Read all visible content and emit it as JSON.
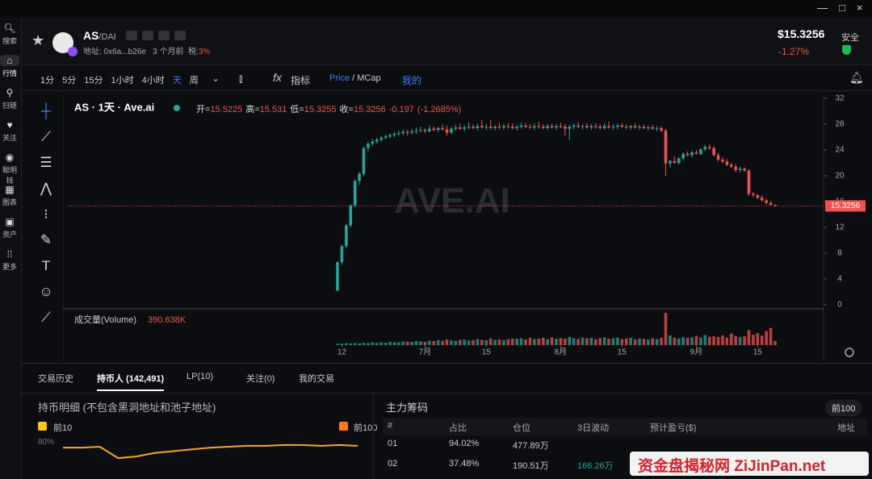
{
  "sidebar": [
    "搜索",
    "行情",
    "扫链",
    "关注",
    "聪明钱",
    "图表",
    "资产",
    "更多"
  ],
  "header": {
    "pair": "AS",
    "quote": "/DAI",
    "address": "地址: 0x6a...b26e",
    "age": "3 个月前",
    "tax_label": "税:",
    "tax": "3%",
    "price": "$15.3256",
    "change": "-1.27%",
    "safety": "安全"
  },
  "toolbar": {
    "intervals": [
      "1分",
      "5分",
      "15分",
      "1小时",
      "4小时",
      "天",
      "周"
    ],
    "indicators": "指标",
    "price_mode": "Price",
    "mcap_mode": "/ MCap",
    "mine": "我的"
  },
  "chart_data": {
    "type": "candlestick",
    "title": "AS · 1天 · Ave.ai",
    "watermark": "AVE.AI",
    "legend": [
      {
        "label": "开=",
        "value": "15.5225"
      },
      {
        "label": "高=",
        "value": "15.531"
      },
      {
        "label": "低=",
        "value": "15.3255"
      },
      {
        "label": "收=",
        "value": "15.3256"
      }
    ],
    "change": "-0.197",
    "change_pct": "(-1.2685%)",
    "up_color": "#26a69a",
    "down_color": "#ef5350",
    "ylim": [
      0,
      32
    ],
    "yticks": [
      0,
      4,
      8,
      12,
      16,
      20,
      24,
      28,
      32
    ],
    "xticks": [
      {
        "value": 1,
        "label": "12"
      },
      {
        "value": 20,
        "label": "7月"
      },
      {
        "value": 34,
        "label": "15"
      },
      {
        "value": 51,
        "label": "8月"
      },
      {
        "value": 65,
        "label": "15"
      },
      {
        "value": 82,
        "label": "9月"
      },
      {
        "value": 96,
        "label": "15"
      }
    ],
    "last_price": 15.3256,
    "candles": [
      [
        2.2,
        6.7,
        2.1,
        6.6
      ],
      [
        6.6,
        9.3,
        6.2,
        9.1
      ],
      [
        9.1,
        12.6,
        8.8,
        12.3
      ],
      [
        12.3,
        15.6,
        12.0,
        15.4
      ],
      [
        15.4,
        19.4,
        15.1,
        19.2
      ],
      [
        19.2,
        20.6,
        18.6,
        20.3
      ],
      [
        20.3,
        24.5,
        19.9,
        24.3
      ],
      [
        24.3,
        25.3,
        23.8,
        25.0
      ],
      [
        25.0,
        25.7,
        24.6,
        25.3
      ],
      [
        25.3,
        25.9,
        25.0,
        25.6
      ],
      [
        25.6,
        26.2,
        25.3,
        25.9
      ],
      [
        25.9,
        26.4,
        25.6,
        26.1
      ],
      [
        26.1,
        26.6,
        25.8,
        26.3
      ],
      [
        26.3,
        26.8,
        26.0,
        26.5
      ],
      [
        26.5,
        27.0,
        26.2,
        26.6
      ],
      [
        26.6,
        27.2,
        26.3,
        26.8
      ],
      [
        26.8,
        27.1,
        26.2,
        26.7
      ],
      [
        26.7,
        27.3,
        26.4,
        26.9
      ],
      [
        26.9,
        27.5,
        26.5,
        27.0
      ],
      [
        27.0,
        27.6,
        26.7,
        27.1
      ],
      [
        27.1,
        27.4,
        26.6,
        26.9
      ],
      [
        26.9,
        27.8,
        26.7,
        27.3
      ],
      [
        27.3,
        27.7,
        26.9,
        27.1
      ],
      [
        27.1,
        27.6,
        26.8,
        27.4
      ],
      [
        27.4,
        28.0,
        27.0,
        27.2
      ],
      [
        27.2,
        27.8,
        26.2,
        26.7
      ],
      [
        26.7,
        27.6,
        26.5,
        27.3
      ],
      [
        27.3,
        27.9,
        27.0,
        27.5
      ],
      [
        27.5,
        28.1,
        27.1,
        27.3
      ],
      [
        27.3,
        27.8,
        26.9,
        27.5
      ],
      [
        27.5,
        28.3,
        27.2,
        27.6
      ],
      [
        27.6,
        28.0,
        27.2,
        27.4
      ],
      [
        27.4,
        28.1,
        27.0,
        27.7
      ],
      [
        27.7,
        28.7,
        27.3,
        27.5
      ],
      [
        27.5,
        28.0,
        27.1,
        27.6
      ],
      [
        27.6,
        28.6,
        27.2,
        27.4
      ],
      [
        27.4,
        27.9,
        27.0,
        27.6
      ],
      [
        27.6,
        28.2,
        27.2,
        27.5
      ],
      [
        27.5,
        28.0,
        27.1,
        27.7
      ],
      [
        27.7,
        28.2,
        27.3,
        27.6
      ],
      [
        27.6,
        28.1,
        27.2,
        27.4
      ],
      [
        27.4,
        27.9,
        27.0,
        27.6
      ],
      [
        27.6,
        28.3,
        27.3,
        27.8
      ],
      [
        27.8,
        28.2,
        27.4,
        27.6
      ],
      [
        27.6,
        28.0,
        27.2,
        27.5
      ],
      [
        27.5,
        28.1,
        27.1,
        27.7
      ],
      [
        27.7,
        28.4,
        27.3,
        27.6
      ],
      [
        27.6,
        28.0,
        27.2,
        27.4
      ],
      [
        27.4,
        28.0,
        27.1,
        27.7
      ],
      [
        27.7,
        28.1,
        27.3,
        27.5
      ],
      [
        27.5,
        28.0,
        27.1,
        27.7
      ],
      [
        27.7,
        28.2,
        27.4,
        27.6
      ],
      [
        27.6,
        28.0,
        26.2,
        27.3
      ],
      [
        27.3,
        27.9,
        25.6,
        27.6
      ],
      [
        27.6,
        28.1,
        27.2,
        27.8
      ],
      [
        27.8,
        28.3,
        27.4,
        27.6
      ],
      [
        27.6,
        28.0,
        27.2,
        27.7
      ],
      [
        27.7,
        28.2,
        27.3,
        27.5
      ],
      [
        27.5,
        28.0,
        27.1,
        27.7
      ],
      [
        27.7,
        28.1,
        27.3,
        27.6
      ],
      [
        27.6,
        28.0,
        27.2,
        27.4
      ],
      [
        27.4,
        28.1,
        27.1,
        27.7
      ],
      [
        27.7,
        28.4,
        27.3,
        27.5
      ],
      [
        27.5,
        28.0,
        27.1,
        27.6
      ],
      [
        27.6,
        28.1,
        27.2,
        27.8
      ],
      [
        27.8,
        28.2,
        27.4,
        27.6
      ],
      [
        27.6,
        28.0,
        27.2,
        27.5
      ],
      [
        27.5,
        27.9,
        27.1,
        27.7
      ],
      [
        27.7,
        28.1,
        27.3,
        27.5
      ],
      [
        27.5,
        27.9,
        27.1,
        27.6
      ],
      [
        27.6,
        28.0,
        27.2,
        27.4
      ],
      [
        27.4,
        27.8,
        27.0,
        27.5
      ],
      [
        27.5,
        27.9,
        27.1,
        27.3
      ],
      [
        27.3,
        27.7,
        26.9,
        27.4
      ],
      [
        27.4,
        27.7,
        26.8,
        27.0
      ],
      [
        27.0,
        27.3,
        20.0,
        21.9
      ],
      [
        21.9,
        22.5,
        21.3,
        22.3
      ],
      [
        22.3,
        23.0,
        21.9,
        22.0
      ],
      [
        22.0,
        22.9,
        21.7,
        22.7
      ],
      [
        22.7,
        23.6,
        22.4,
        23.4
      ],
      [
        23.4,
        23.8,
        23.0,
        23.2
      ],
      [
        23.2,
        23.9,
        22.8,
        23.6
      ],
      [
        23.6,
        24.0,
        23.3,
        23.4
      ],
      [
        23.4,
        24.3,
        23.2,
        24.1
      ],
      [
        24.1,
        24.8,
        23.8,
        24.5
      ],
      [
        24.5,
        24.9,
        24.0,
        24.3
      ],
      [
        24.3,
        24.6,
        23.0,
        23.2
      ],
      [
        23.2,
        23.5,
        22.2,
        22.5
      ],
      [
        22.5,
        22.9,
        21.9,
        22.2
      ],
      [
        22.2,
        22.6,
        21.5,
        21.7
      ],
      [
        21.7,
        22.0,
        21.2,
        21.4
      ],
      [
        21.4,
        21.8,
        20.6,
        20.9
      ],
      [
        20.9,
        21.4,
        20.5,
        21.1
      ],
      [
        21.1,
        21.3,
        20.6,
        20.8
      ],
      [
        20.8,
        21.0,
        16.9,
        17.2
      ],
      [
        17.2,
        17.5,
        16.7,
        17.0
      ],
      [
        17.0,
        17.2,
        16.4,
        16.6
      ],
      [
        16.6,
        17.0,
        16.0,
        16.2
      ],
      [
        16.2,
        16.5,
        15.6,
        15.8
      ],
      [
        15.8,
        16.1,
        15.4,
        15.5225
      ],
      [
        15.5225,
        15.531,
        15.3255,
        15.3256
      ]
    ],
    "volume": {
      "label": "成交量(Volume)",
      "last_label": "390.638K",
      "values": [
        120,
        150,
        180,
        160,
        200,
        170,
        220,
        190,
        250,
        210,
        260,
        230,
        300,
        280,
        260,
        350,
        320,
        290,
        380,
        340,
        310,
        420,
        380,
        460,
        400,
        520,
        440,
        390,
        480,
        510,
        430,
        470,
        560,
        500,
        450,
        620,
        480,
        530,
        470,
        550,
        600,
        580,
        640,
        520,
        700,
        560,
        610,
        680,
        540,
        720,
        590,
        650,
        600,
        760,
        640,
        580,
        700,
        620,
        680,
        560,
        650,
        720,
        590,
        640,
        700,
        560,
        620,
        680,
        540,
        600,
        580,
        520,
        640,
        560,
        700,
        3000,
        900,
        700,
        620,
        760,
        680,
        720,
        860,
        700,
        940,
        780,
        820,
        760,
        900,
        700,
        1080,
        860,
        760,
        820,
        1400,
        960,
        1120,
        880,
        1300,
        1600,
        390.638
      ]
    }
  },
  "tabs": [
    "交易历史",
    "持币人 (142,491)",
    "LP(10)",
    "关注(0)",
    "我的交易"
  ],
  "holders": {
    "title": "持币明细 (不包含黑洞地址和池子地址)",
    "top10": "前10",
    "top100": "前100",
    "ylim": [
      60,
      82
    ],
    "yticks": [
      {
        "value": 80,
        "label": "80%"
      }
    ],
    "values": [
      76,
      76,
      76.5,
      70,
      71,
      73,
      74,
      75,
      76,
      76.5,
      77,
      77,
      77.5,
      77.5,
      77,
      77.5,
      77
    ]
  },
  "main": {
    "title": "主力筹码",
    "filter": "前100",
    "columns": [
      "#",
      "占比",
      "仓位",
      "3日波动",
      "预计盈亏($)",
      "地址"
    ],
    "rows": [
      [
        "01",
        "94.02%",
        "477.89万"
      ],
      [
        "02",
        "37.48%",
        "190.51万",
        "166.26万"
      ]
    ]
  },
  "watermark": "资金盘揭秘网 ZiJinPan.net"
}
